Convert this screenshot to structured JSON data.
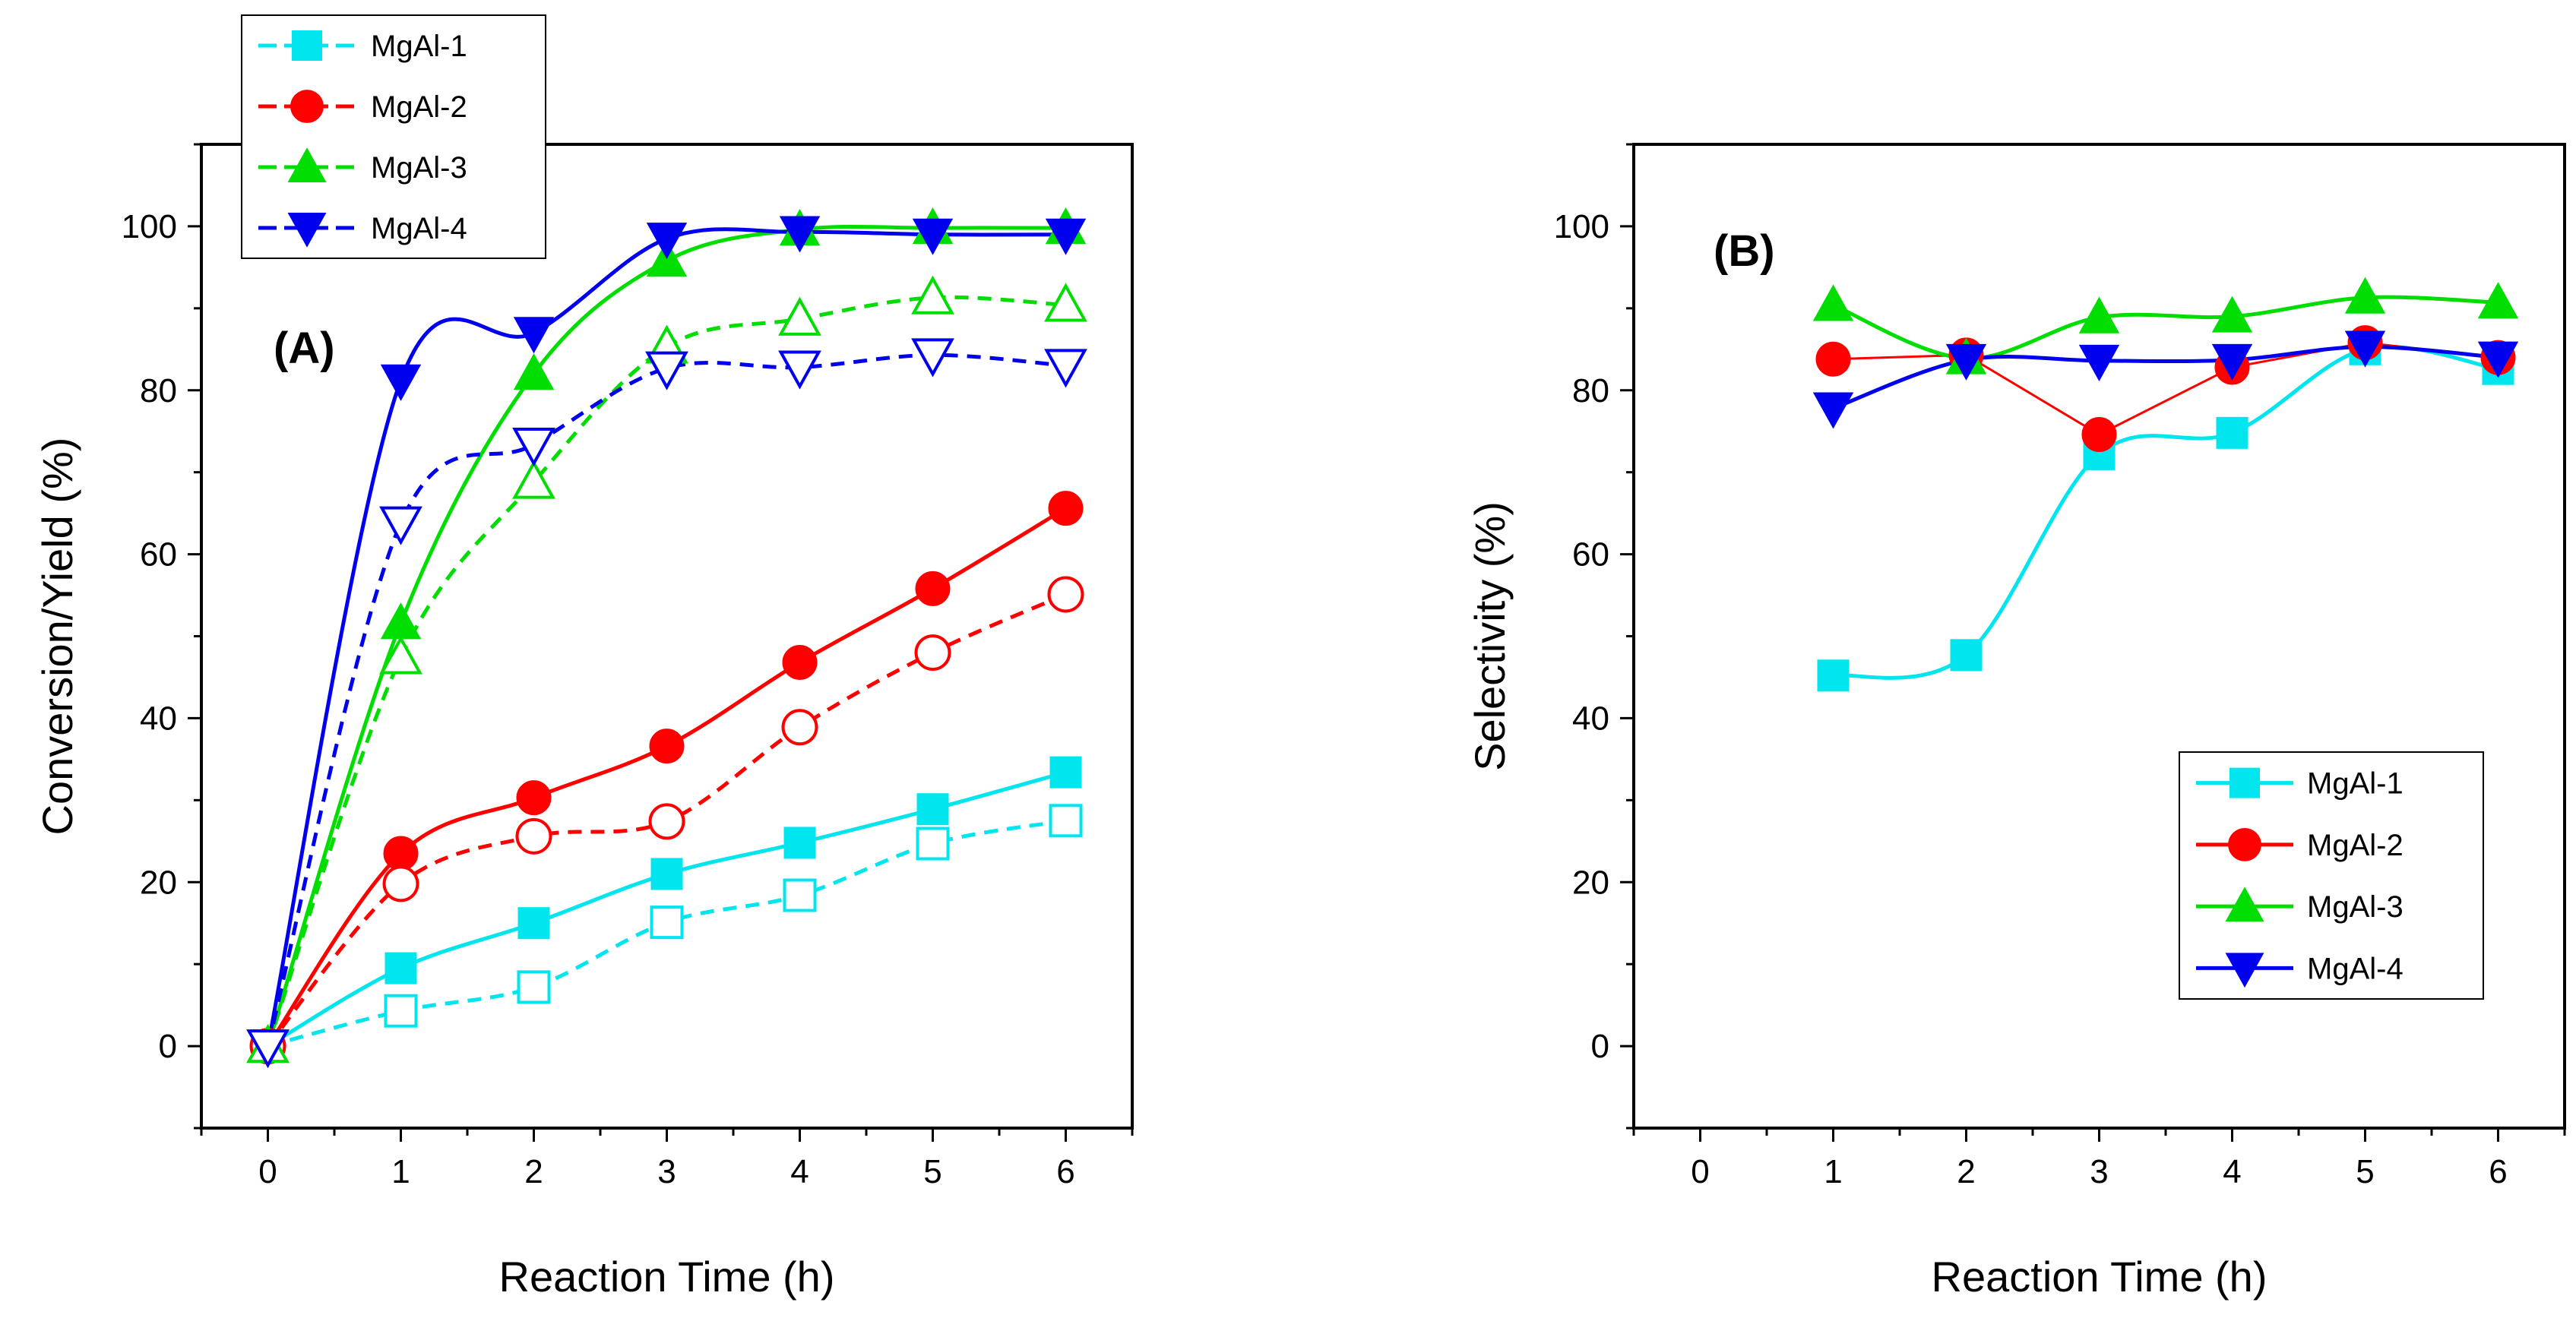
{
  "chart_data": [
    {
      "panel": "A",
      "type": "line",
      "panel_label": "(A)",
      "xlabel": "Reaction Time (h)",
      "ylabel": "Conversion/Yield (%)",
      "xlim": [
        -0.5,
        6.5
      ],
      "ylim": [
        -10,
        110
      ],
      "xticks": [
        0,
        1,
        2,
        3,
        4,
        5,
        6
      ],
      "yticks": [
        0,
        20,
        40,
        60,
        80,
        100
      ],
      "legend_position": "top-left-outside",
      "legend_style": "dashed",
      "x": [
        0,
        1,
        2,
        3,
        4,
        5,
        6
      ],
      "series": [
        {
          "name": "MgAl-1",
          "kind": "conversion",
          "color": "#00e5ee",
          "marker": "square",
          "filled": true,
          "dash": false,
          "values": [
            0,
            9.5,
            15,
            21,
            24.8,
            28.9,
            33.4
          ]
        },
        {
          "name": "MgAl-2",
          "kind": "conversion",
          "color": "#ff0000",
          "marker": "circle",
          "filled": true,
          "dash": false,
          "values": [
            0,
            23.5,
            30.3,
            36.6,
            46.8,
            55.8,
            65.6
          ]
        },
        {
          "name": "MgAl-3",
          "kind": "conversion",
          "color": "#00dd00",
          "marker": "triangle-up",
          "filled": true,
          "dash": false,
          "values": [
            0,
            51.6,
            82,
            95.8,
            99.6,
            99.8,
            99.8
          ]
        },
        {
          "name": "MgAl-4",
          "kind": "conversion",
          "color": "#0000ee",
          "marker": "triangle-down",
          "filled": true,
          "dash": false,
          "values": [
            0,
            81.2,
            87,
            98.5,
            99.3,
            99,
            99
          ]
        },
        {
          "name": "MgAl-1",
          "kind": "yield",
          "color": "#00e5ee",
          "marker": "square",
          "filled": false,
          "dash": true,
          "values": [
            0,
            4.3,
            7.2,
            15.1,
            18.4,
            24.7,
            27.5
          ]
        },
        {
          "name": "MgAl-2",
          "kind": "yield",
          "color": "#ff0000",
          "marker": "circle",
          "filled": false,
          "dash": true,
          "values": [
            0,
            19.8,
            25.6,
            27.4,
            38.9,
            48,
            55.1
          ]
        },
        {
          "name": "MgAl-3",
          "kind": "yield",
          "color": "#00dd00",
          "marker": "triangle-up",
          "filled": false,
          "dash": true,
          "values": [
            0,
            47.4,
            68.8,
            85.3,
            88.7,
            91.3,
            90.4
          ]
        },
        {
          "name": "MgAl-4",
          "kind": "yield",
          "color": "#0000ee",
          "marker": "triangle-down",
          "filled": false,
          "dash": true,
          "values": [
            0,
            63.8,
            73.4,
            82.7,
            82.8,
            84.3,
            83
          ]
        }
      ]
    },
    {
      "panel": "B",
      "type": "line",
      "panel_label": "(B)",
      "xlabel": "Reaction Time (h)",
      "ylabel": "Selectivity (%)",
      "xlim": [
        -0.5,
        6.5
      ],
      "ylim": [
        -10,
        110
      ],
      "xticks": [
        0,
        1,
        2,
        3,
        4,
        5,
        6
      ],
      "yticks": [
        0,
        20,
        40,
        60,
        80,
        100
      ],
      "legend_position": "bottom-right-inside",
      "legend_style": "solid",
      "x": [
        1,
        2,
        3,
        4,
        5,
        6
      ],
      "series": [
        {
          "name": "MgAl-1",
          "color": "#00e5ee",
          "marker": "square",
          "filled": true,
          "dash": false,
          "curve": "smooth",
          "values": [
            45.2,
            47.7,
            72.2,
            74.8,
            85,
            82.6
          ]
        },
        {
          "name": "MgAl-2",
          "color": "#ff0000",
          "marker": "circle",
          "filled": true,
          "dash": false,
          "curve": "straight",
          "values": [
            83.8,
            84.3,
            74.6,
            82.8,
            85.8,
            84
          ]
        },
        {
          "name": "MgAl-3",
          "color": "#00dd00",
          "marker": "triangle-up",
          "filled": true,
          "dash": false,
          "curve": "smooth",
          "values": [
            90.4,
            83.9,
            88.9,
            89,
            91.3,
            90.7
          ]
        },
        {
          "name": "MgAl-4",
          "color": "#0000ee",
          "marker": "triangle-down",
          "filled": true,
          "dash": false,
          "curve": "smooth",
          "values": [
            77.8,
            83.7,
            83.6,
            83.7,
            85.3,
            84
          ]
        }
      ]
    }
  ]
}
